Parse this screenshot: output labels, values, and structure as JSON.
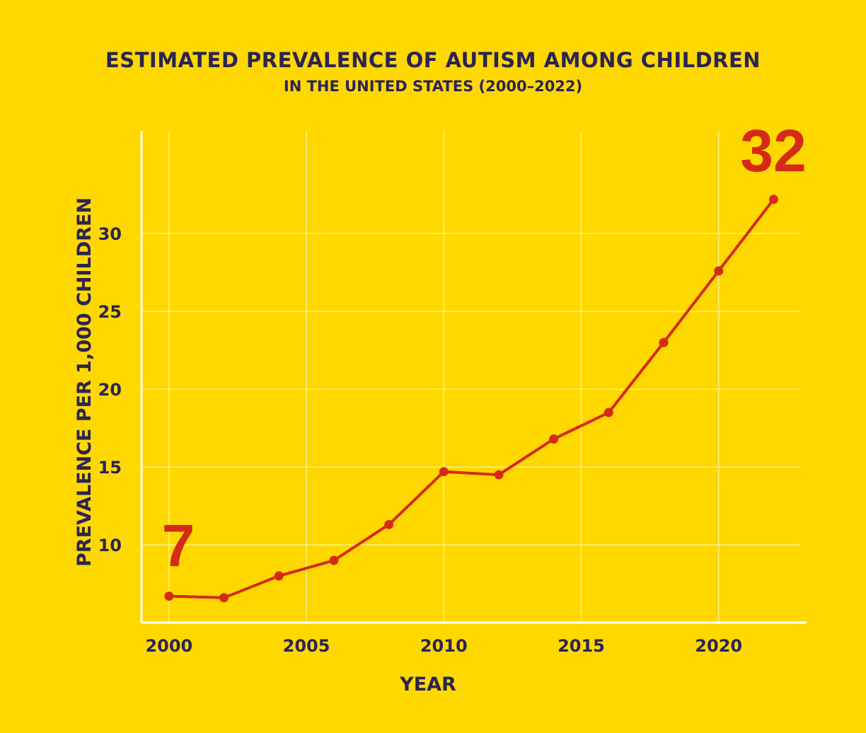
{
  "chart_data": {
    "type": "line",
    "title": "ESTIMATED PREVALENCE OF AUTISM AMONG CHILDREN",
    "subtitle": "IN THE UNITED STATES (2000–2022)",
    "xlabel": "YEAR",
    "ylabel": "PREVALENCE PER 1,000 CHILDREN",
    "x": [
      2000,
      2002,
      2004,
      2006,
      2008,
      2010,
      2012,
      2014,
      2016,
      2018,
      2020,
      2022
    ],
    "series": [
      {
        "values": [
          6.7,
          6.6,
          8.0,
          9.0,
          11.3,
          14.7,
          14.5,
          16.8,
          18.5,
          23.0,
          27.6,
          32.2
        ]
      }
    ],
    "xlim": [
      1999,
      2023.2
    ],
    "ylim": [
      5,
      36.6
    ],
    "xticks": [
      "2000",
      "2005",
      "2010",
      "2015",
      "2020"
    ],
    "yticks": [
      "10",
      "15",
      "20",
      "25",
      "30"
    ],
    "annotations": [
      {
        "text": "7",
        "x": 2000
      },
      {
        "text": "32",
        "x": 2022
      }
    ],
    "grid": true,
    "colors": {
      "background": "#FFD800",
      "line": "#D52B16",
      "text": "#2B2454",
      "grid": "#FFF3A6"
    }
  }
}
